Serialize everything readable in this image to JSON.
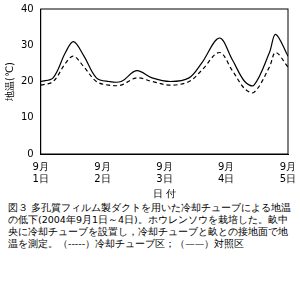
{
  "chart_data": {
    "type": "line",
    "x_label": "日 付",
    "y_label": "地温(℃)",
    "caption": "図３ 多孔質フィルム製ダクトを用いた冷却チューブによる地温の低下(2004年9月1日～4日)。ホウレンソウを栽培した。畝中央に冷却チューブを設置し，冷却チューブと畝との接地面で地温を測定。（-----）冷却チューブ区；（——）対照区",
    "x": [
      0,
      0.2,
      0.4,
      0.53,
      0.7,
      0.9,
      1.1,
      1.3,
      1.55,
      1.8,
      2.1,
      2.4,
      2.6,
      2.89,
      3.1,
      3.3,
      3.45,
      3.7,
      3.8,
      4.0
    ],
    "series": [
      {
        "name": "冷却チューブ区",
        "color": "#000000",
        "line_style": "dashed",
        "values": [
          19,
          20,
          25,
          27,
          24,
          20,
          19,
          19,
          21,
          20,
          19,
          20,
          23,
          28,
          23,
          18,
          17,
          24,
          28,
          24
        ]
      },
      {
        "name": "対照区",
        "color": "#000000",
        "line_style": "solid",
        "values": [
          20,
          21,
          28,
          31,
          27,
          21,
          20,
          20,
          23,
          21,
          20,
          21,
          25,
          32,
          26,
          20,
          19,
          28,
          33,
          27
        ]
      }
    ],
    "xlim": [
      0,
      4
    ],
    "xticks": [
      {
        "value": 0,
        "label": "9月\n1日"
      },
      {
        "value": 1,
        "label": "9月\n2日"
      },
      {
        "value": 2,
        "label": "9月\n3日"
      },
      {
        "value": 3,
        "label": "9月\n4日"
      },
      {
        "value": 4,
        "label": "9月\n5日"
      }
    ],
    "ylim": [
      0,
      40
    ],
    "yticks": [
      0,
      10,
      20,
      30,
      40
    ],
    "grid": false,
    "tick_labels": true
  }
}
